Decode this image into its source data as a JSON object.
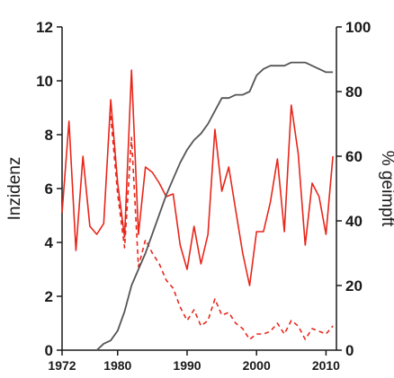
{
  "chart_data": {
    "type": "line",
    "ylabel_left": "Inzidenz",
    "ylabel_right": "% geimpft",
    "xlim": [
      1972,
      2011.5
    ],
    "ylim_left": [
      0,
      12
    ],
    "ylim_right": [
      0,
      100
    ],
    "x_ticks": [
      1972,
      1980,
      1990,
      2000,
      2010
    ],
    "x_tick_labels": [
      "1972",
      "1980",
      "1990",
      "2000",
      "2010"
    ],
    "y_left_ticks": [
      0,
      2,
      4,
      6,
      8,
      10,
      12
    ],
    "y_left_tick_labels": [
      "0",
      "2",
      "4",
      "6",
      "8",
      "10",
      "12"
    ],
    "y_right_ticks": [
      0,
      20,
      40,
      60,
      80,
      100
    ],
    "y_right_tick_labels": [
      "0",
      "20",
      "40",
      "60",
      "80",
      "100"
    ],
    "grid": false,
    "colors": {
      "incidence": "#e8261a",
      "vaccinated": "#555555",
      "axis": "#1a1a1a"
    },
    "series": [
      {
        "axis": "left",
        "style": "solid",
        "x": [
          1972,
          1973,
          1974,
          1975,
          1976,
          1977,
          1978,
          1979,
          1980,
          1981,
          1982,
          1983,
          1984,
          1985,
          1986,
          1987,
          1988,
          1989,
          1990,
          1991,
          1992,
          1993,
          1994,
          1995,
          1996,
          1997,
          1998,
          1999,
          2000,
          2001,
          2002,
          2003,
          2004,
          2005,
          2006,
          2007,
          2008,
          2009,
          2010,
          2011
        ],
        "values": [
          5.1,
          8.5,
          3.7,
          7.2,
          4.6,
          4.3,
          4.7,
          9.3,
          6.2,
          4.2,
          10.4,
          4.3,
          6.8,
          6.6,
          6.2,
          5.7,
          5.8,
          3.9,
          3.0,
          4.6,
          3.2,
          4.3,
          8.2,
          5.9,
          6.8,
          5.2,
          3.6,
          2.4,
          4.4,
          4.4,
          5.5,
          7.1,
          4.4,
          9.1,
          7.3,
          3.9,
          6.2,
          5.7,
          4.3,
          7.2
        ]
      },
      {
        "axis": "left",
        "style": "dashed",
        "x": [
          1979,
          1980,
          1981,
          1982,
          1983,
          1984,
          1985,
          1986,
          1987,
          1988,
          1989,
          1990,
          1991,
          1992,
          1993,
          1994,
          1995,
          1996,
          1997,
          1998,
          1999,
          2000,
          2001,
          2002,
          2003,
          2004,
          2005,
          2006,
          2007,
          2008,
          2009,
          2010,
          2011
        ],
        "values": [
          8.7,
          5.8,
          3.8,
          7.9,
          3.1,
          4.1,
          3.6,
          3.2,
          2.6,
          2.3,
          1.6,
          1.1,
          1.5,
          0.9,
          1.1,
          1.9,
          1.3,
          1.4,
          1.0,
          0.8,
          0.4,
          0.6,
          0.6,
          0.7,
          1.0,
          0.6,
          1.1,
          0.9,
          0.4,
          0.8,
          0.7,
          0.6,
          0.9
        ]
      },
      {
        "axis": "right",
        "style": "solid",
        "x": [
          1977,
          1978,
          1979,
          1980,
          1981,
          1982,
          1983,
          1984,
          1985,
          1986,
          1987,
          1988,
          1989,
          1990,
          1991,
          1992,
          1993,
          1994,
          1995,
          1996,
          1997,
          1998,
          1999,
          2000,
          2001,
          2002,
          2003,
          2004,
          2005,
          2006,
          2007,
          2008,
          2009,
          2010,
          2011
        ],
        "values": [
          0,
          2,
          3,
          6,
          12,
          20,
          25,
          30,
          36,
          42,
          48,
          53,
          58,
          62,
          65,
          67,
          70,
          74,
          78,
          78,
          79,
          79,
          80,
          85,
          87,
          88,
          88,
          88,
          89,
          89,
          89,
          88,
          87,
          86,
          86
        ]
      }
    ]
  }
}
